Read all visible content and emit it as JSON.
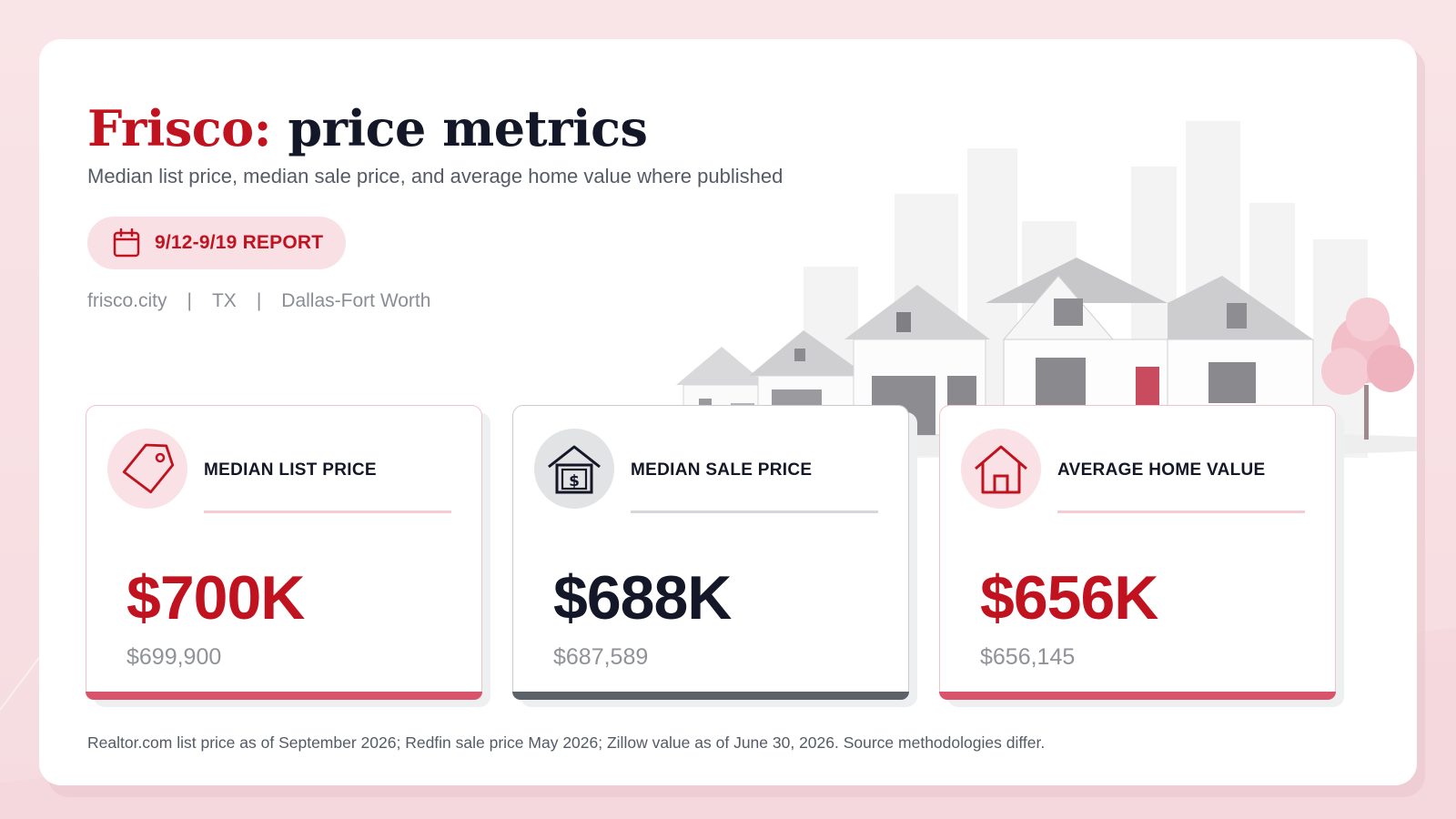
{
  "header": {
    "title_city": "Frisco:",
    "title_rest": "price metrics",
    "subtitle": "Median list price, median sale price, and average home value where published"
  },
  "report_badge": {
    "label": "9/12-9/19 REPORT",
    "icon": "calendar-icon"
  },
  "meta": {
    "site": "frisco.city",
    "state": "TX",
    "metro": "Dallas-Fort Worth",
    "separator": "|"
  },
  "metrics": [
    {
      "label": "MEDIAN LIST PRICE",
      "value": "$700K",
      "exact": "$699,900",
      "icon": "price-tag-icon",
      "accent": "#c1121f"
    },
    {
      "label": "MEDIAN SALE PRICE",
      "value": "$688K",
      "exact": "$687,589",
      "icon": "house-dollar-icon",
      "accent": "#141727"
    },
    {
      "label": "AVERAGE HOME VALUE",
      "value": "$656K",
      "exact": "$656,145",
      "icon": "house-icon",
      "accent": "#c1121f"
    }
  ],
  "footnote": "Realtor.com list price as of September 2026; Redfin sale price May 2026; Zillow value as of June 30, 2026. Source methodologies differ.",
  "colors": {
    "brand": "#c1121f",
    "ink": "#141727",
    "muted": "#8a8d95",
    "pink_soft": "#f9e1e5"
  }
}
